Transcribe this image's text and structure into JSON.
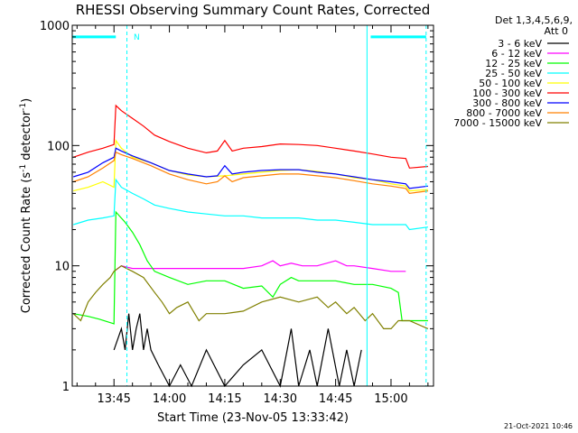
{
  "chart_data": {
    "type": "line",
    "title": "RHESSI Observing Summary Count Rates, Corrected",
    "xlabel": "Start Time (23-Nov-05 13:33:42)",
    "ylabel": "Corrected Count Rate (s",
    "ylabel_sup": "-1",
    "ylabel_end": " detector",
    "ylabel_sup2": "-1",
    "ylabel_close": ")",
    "yscale": "log",
    "ylim": [
      1,
      1000
    ],
    "xlim_minutes": [
      33.7,
      131.5
    ],
    "x_unit": "minutes after 13:00 UT",
    "x_ticks": [
      {
        "min": 45,
        "label": "13:45"
      },
      {
        "min": 60,
        "label": "14:00"
      },
      {
        "min": 75,
        "label": "14:15"
      },
      {
        "min": 90,
        "label": "14:30"
      },
      {
        "min": 105,
        "label": "14:45"
      },
      {
        "min": 120,
        "label": "15:00"
      }
    ],
    "y_ticks": [
      {
        "v": 1,
        "label": "1"
      },
      {
        "v": 10,
        "label": "10"
      },
      {
        "v": 100,
        "label": "100"
      },
      {
        "v": 1000,
        "label": "1000"
      }
    ],
    "legend_header": [
      "Det 1,3,4,5,6,9,",
      "Att 0"
    ],
    "legend_position": "right",
    "timestamp": "21-Oct-2021 10:46",
    "annotation": "N",
    "flags": {
      "color": "#00ffff",
      "bar_level": 800,
      "bars": [
        [
          33.7,
          45.5
        ],
        [
          114.5,
          129.5
        ]
      ],
      "solid_lines": [
        33.7,
        113.5
      ],
      "dashed_lines": [
        48.5,
        129.5
      ]
    },
    "series": [
      {
        "name": "3 - 6 keV",
        "color": "#000000",
        "x": [
          45,
          47,
          48,
          49,
          50,
          51,
          52,
          53,
          54,
          55,
          57,
          60,
          63,
          66,
          70,
          75,
          80,
          85,
          90,
          93,
          95,
          98,
          100,
          103,
          106,
          108,
          110,
          112
        ],
        "y": [
          2,
          3,
          2,
          4,
          2,
          3,
          4,
          2,
          3,
          2,
          1.5,
          1,
          1.5,
          1,
          2,
          1,
          1.5,
          2,
          1,
          3,
          1,
          2,
          1,
          3,
          1,
          2,
          1,
          2
        ]
      },
      {
        "name": "6 - 12 keV",
        "color": "#ff00ff",
        "x": [
          45,
          47,
          50,
          55,
          60,
          65,
          70,
          75,
          80,
          85,
          88,
          90,
          93,
          96,
          100,
          105,
          108,
          110,
          115,
          120,
          124
        ],
        "y": [
          9,
          10,
          9.5,
          9.5,
          9.5,
          9.5,
          9.5,
          9.5,
          9.5,
          10,
          11,
          10,
          10.5,
          10,
          10,
          11,
          10,
          10,
          9.5,
          9,
          9
        ]
      },
      {
        "name": "12 - 25 keV",
        "color": "#00ff00",
        "x": [
          34,
          38,
          41,
          45,
          45.5,
          48,
          50,
          52,
          54,
          56,
          60,
          65,
          70,
          75,
          80,
          85,
          88,
          90,
          93,
          95,
          100,
          105,
          110,
          115,
          120,
          122,
          123,
          124,
          130
        ],
        "y": [
          4,
          3.8,
          3.6,
          3.3,
          28,
          23,
          19,
          15,
          11,
          9,
          8,
          7,
          7.5,
          7.5,
          6.5,
          6.8,
          5.5,
          7,
          8,
          7.5,
          7.5,
          7.5,
          7,
          7,
          6.5,
          6,
          3.5,
          3.5,
          3.5
        ]
      },
      {
        "name": "25 - 50 keV",
        "color": "#00ffff",
        "x": [
          34,
          38,
          42,
          45,
          45.5,
          47,
          50,
          53,
          56,
          60,
          65,
          70,
          75,
          80,
          85,
          90,
          95,
          100,
          105,
          110,
          115,
          120,
          124,
          125,
          130
        ],
        "y": [
          22,
          24,
          25,
          26,
          52,
          45,
          40,
          36,
          32,
          30,
          28,
          27,
          26,
          26,
          25,
          25,
          25,
          24,
          24,
          23,
          22,
          22,
          22,
          20,
          21
        ]
      },
      {
        "name": "50 - 100 keV",
        "color": "#ffff00",
        "x": [
          34,
          38,
          42,
          45,
          45.5,
          47,
          50,
          55,
          60,
          65,
          70,
          75,
          80,
          85,
          90,
          95,
          100,
          105,
          110,
          115,
          120,
          124,
          125,
          130
        ],
        "y": [
          42,
          45,
          50,
          45,
          110,
          95,
          80,
          72,
          62,
          57,
          55,
          56,
          58,
          60,
          62,
          63,
          61,
          58,
          54,
          52,
          48,
          46,
          42,
          43
        ]
      },
      {
        "name": "100 - 300 keV",
        "color": "#ff0000",
        "x": [
          34,
          38,
          42,
          45,
          45.5,
          47,
          50,
          53,
          56,
          60,
          65,
          70,
          73,
          75,
          77,
          80,
          85,
          90,
          95,
          100,
          105,
          110,
          115,
          120,
          124,
          125,
          130
        ],
        "y": [
          80,
          88,
          95,
          102,
          215,
          195,
          168,
          145,
          122,
          108,
          95,
          87,
          90,
          110,
          90,
          95,
          98,
          103,
          102,
          100,
          95,
          90,
          85,
          80,
          78,
          65,
          67
        ]
      },
      {
        "name": "300 - 800 keV",
        "color": "#0000ff",
        "x": [
          34,
          38,
          42,
          45,
          45.5,
          47,
          50,
          55,
          60,
          65,
          70,
          73,
          75,
          77,
          80,
          85,
          90,
          95,
          100,
          105,
          110,
          115,
          120,
          124,
          125,
          130
        ],
        "y": [
          55,
          60,
          72,
          80,
          95,
          90,
          82,
          72,
          62,
          58,
          55,
          56,
          68,
          58,
          60,
          62,
          63,
          63,
          60,
          58,
          55,
          52,
          50,
          48,
          44,
          46
        ]
      },
      {
        "name": "800 - 7000 keV",
        "color": "#ff8000",
        "x": [
          34,
          38,
          42,
          45,
          45.5,
          47,
          50,
          55,
          60,
          65,
          70,
          73,
          75,
          77,
          80,
          85,
          90,
          95,
          100,
          105,
          110,
          115,
          120,
          124,
          125,
          130
        ],
        "y": [
          50,
          55,
          65,
          75,
          88,
          84,
          78,
          68,
          58,
          52,
          48,
          50,
          56,
          50,
          54,
          56,
          58,
          58,
          56,
          54,
          51,
          48,
          46,
          44,
          40,
          42
        ]
      },
      {
        "name": "7000 - 15000 keV",
        "color": "#808000",
        "x": [
          34,
          36,
          38,
          40,
          42,
          44,
          45,
          47,
          50,
          53,
          56,
          58,
          60,
          62,
          65,
          68,
          70,
          75,
          80,
          85,
          90,
          95,
          100,
          103,
          105,
          108,
          110,
          113,
          115,
          118,
          120,
          122,
          125,
          130
        ],
        "y": [
          4,
          3.5,
          5,
          6,
          7,
          8,
          9,
          10,
          9,
          8,
          6,
          5,
          4,
          4.5,
          5,
          3.5,
          4,
          4,
          4.2,
          5,
          5.5,
          5,
          5.5,
          4.5,
          5,
          4,
          4.5,
          3.5,
          4,
          3,
          3,
          3.5,
          3.5,
          3
        ]
      }
    ]
  }
}
